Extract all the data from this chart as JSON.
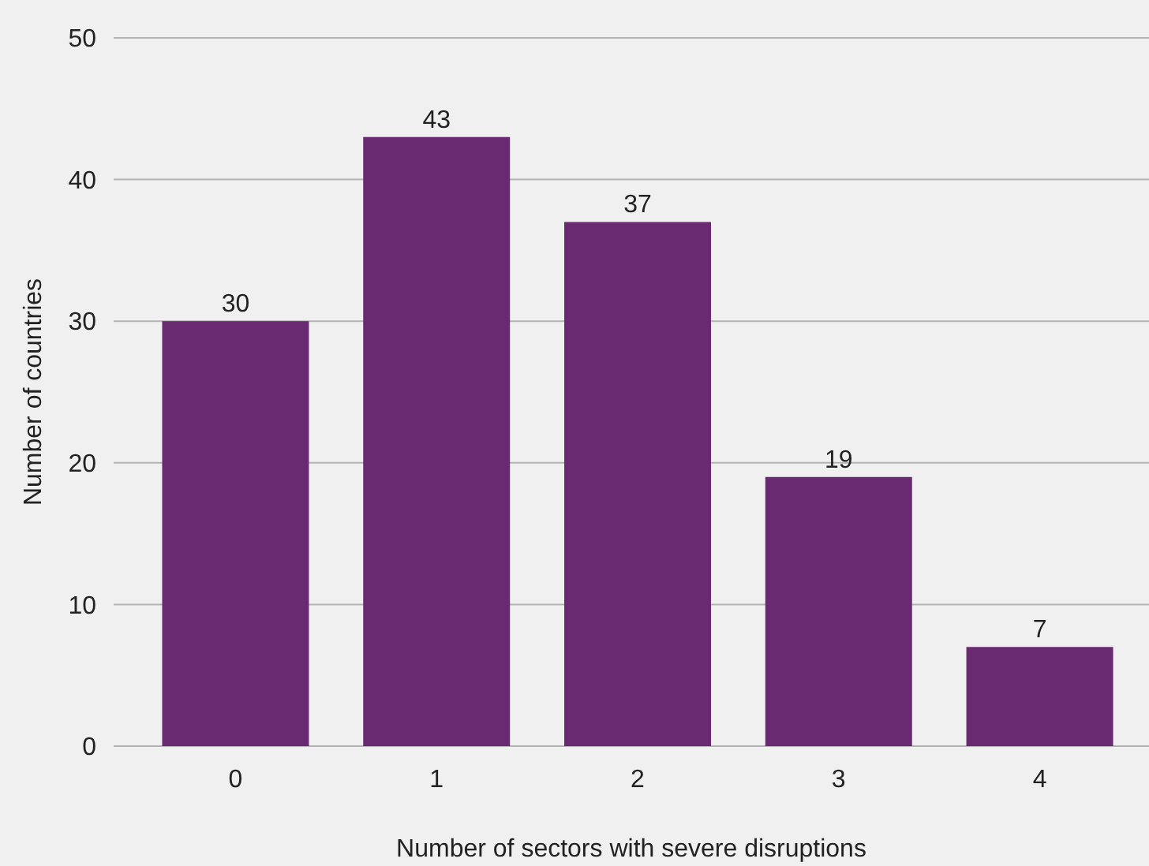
{
  "chart_data": {
    "type": "bar",
    "xlabel": "Number of sectors with severe disruptions",
    "ylabel": "Number of countries",
    "categories": [
      "0",
      "1",
      "2",
      "3",
      "4"
    ],
    "values": [
      30,
      43,
      37,
      19,
      7
    ],
    "color": "#6a2a71",
    "ylim": [
      0,
      50
    ],
    "yticks": [
      0,
      10,
      20,
      30,
      40,
      50
    ],
    "grid": "y",
    "data_labels": true
  }
}
